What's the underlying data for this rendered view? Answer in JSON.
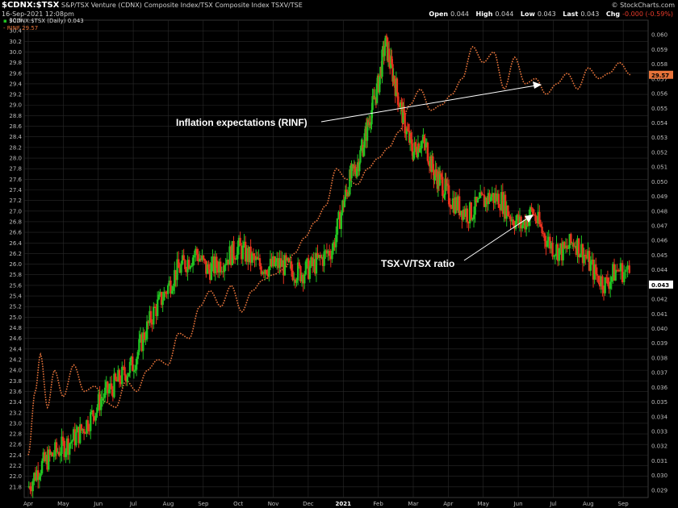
{
  "header": {
    "symbol": "$CDNX:$TSX",
    "description": "S&P/TSX Venture (CDNX) Composite Index/TSX Composite Index  TSXV/TSE",
    "timestamp": "16-Sep-2021 12:08pm",
    "watermark": "© StockCharts.com",
    "quote": {
      "open_label": "Open",
      "open": "0.044",
      "high_label": "High",
      "high": "0.044",
      "low_label": "Low",
      "low": "0.043",
      "last_label": "Last",
      "last": "0.043",
      "chg_label": "Chg",
      "chg": "-0.000 (-0.59%)"
    }
  },
  "legend": {
    "ratio_entry": "$CDNX:$TSX (Daily) 0.043",
    "rinf_entry": "RINF 29.57"
  },
  "annotations": {
    "inflation": "Inflation expectations (RINF)",
    "ratio": "TSX-V/TSX ratio"
  },
  "colors": {
    "background": "#000000",
    "up_candle": "#22c322",
    "down_candle": "#e8321e",
    "rinf_line": "#e8743a",
    "grid": "#2a2a2a",
    "annotation": "#ffffff"
  },
  "chart_data": {
    "type": "line",
    "title": "$CDNX:$TSX",
    "x_ticks": [
      "Apr",
      "May",
      "Jun",
      "Jul",
      "Aug",
      "Sep",
      "Oct",
      "Nov",
      "Dec",
      "2021",
      "Feb",
      "Mar",
      "Apr",
      "May",
      "Jun",
      "Jul",
      "Aug",
      "Sep"
    ],
    "y_left": {
      "label": "RINF",
      "range": [
        21.6,
        30.6
      ],
      "ticks": [
        "21.8",
        "22.0",
        "22.2",
        "22.4",
        "22.6",
        "22.8",
        "23.0",
        "23.2",
        "23.4",
        "23.6",
        "23.8",
        "24.0",
        "24.2",
        "24.4",
        "24.6",
        "24.8",
        "25.0",
        "25.2",
        "25.4",
        "25.6",
        "25.8",
        "26.0",
        "26.2",
        "26.4",
        "26.6",
        "26.8",
        "27.0",
        "27.2",
        "27.4",
        "27.6",
        "27.8",
        "28.0",
        "28.2",
        "28.4",
        "28.6",
        "28.8",
        "29.0",
        "29.2",
        "29.4",
        "29.6",
        "29.8",
        "30.0",
        "30.2",
        "30.4",
        "30.6"
      ]
    },
    "y_right": {
      "label": "$CDNX:$TSX",
      "range": [
        0.0285,
        0.061
      ],
      "ticks": [
        "0.029",
        "0.030",
        "0.031",
        "0.032",
        "0.033",
        "0.034",
        "0.035",
        "0.036",
        "0.037",
        "0.038",
        "0.039",
        "0.040",
        "0.041",
        "0.042",
        "0.043",
        "0.044",
        "0.045",
        "0.046",
        "0.047",
        "0.048",
        "0.049",
        "0.050",
        "0.051",
        "0.052",
        "0.053",
        "0.054",
        "0.055",
        "0.056",
        "0.057",
        "0.058",
        "0.059",
        "0.060"
      ]
    },
    "last_values": {
      "rinf": "29.57",
      "ratio": "0.043"
    },
    "grid": true,
    "series": [
      {
        "name": "$CDNX:$TSX",
        "type": "candlestick",
        "axis": "right",
        "x": [
          0,
          0.3,
          0.6,
          0.9,
          1.2,
          1.5,
          1.8,
          2.1,
          2.4,
          2.7,
          3.0,
          3.3,
          3.6,
          3.9,
          4.2,
          4.5,
          4.8,
          5.1,
          5.4,
          5.7,
          6.0,
          6.3,
          6.6,
          6.9,
          7.2,
          7.5,
          7.8,
          8.1,
          8.4,
          8.7,
          9.0,
          9.2,
          9.4,
          9.6,
          9.8,
          10.0,
          10.2,
          10.4,
          10.6,
          10.8,
          11.0,
          11.2,
          11.4,
          11.6,
          11.8,
          12.0,
          12.3,
          12.6,
          12.9,
          13.2,
          13.5,
          13.8,
          14.1,
          14.4,
          14.7,
          15.0,
          15.3,
          15.6,
          15.9,
          16.2,
          16.5,
          16.8,
          17.2
        ],
        "values": [
          0.0292,
          0.0305,
          0.0312,
          0.0318,
          0.0323,
          0.033,
          0.034,
          0.0353,
          0.036,
          0.0368,
          0.0376,
          0.0395,
          0.0412,
          0.0424,
          0.0438,
          0.0445,
          0.0452,
          0.044,
          0.0443,
          0.0449,
          0.0455,
          0.0449,
          0.0443,
          0.0442,
          0.0444,
          0.044,
          0.0438,
          0.0442,
          0.0448,
          0.0455,
          0.0485,
          0.0502,
          0.0512,
          0.0528,
          0.0548,
          0.0566,
          0.0595,
          0.0575,
          0.0555,
          0.0535,
          0.052,
          0.0528,
          0.0522,
          0.0505,
          0.05,
          0.049,
          0.0483,
          0.0478,
          0.0485,
          0.049,
          0.0488,
          0.0476,
          0.047,
          0.048,
          0.0465,
          0.0455,
          0.0452,
          0.046,
          0.045,
          0.0437,
          0.043,
          0.044,
          0.0438
        ]
      },
      {
        "name": "RINF",
        "type": "dotted-line",
        "axis": "left",
        "x": [
          0,
          0.2,
          0.35,
          0.55,
          0.75,
          1.0,
          1.3,
          1.6,
          1.9,
          2.2,
          2.5,
          2.8,
          3.1,
          3.4,
          3.7,
          4.0,
          4.3,
          4.6,
          4.9,
          5.2,
          5.5,
          5.8,
          6.1,
          6.4,
          6.7,
          7.0,
          7.3,
          7.6,
          7.9,
          8.2,
          8.5,
          8.8,
          9.1,
          9.4,
          9.7,
          10.0,
          10.3,
          10.6,
          10.9,
          11.2,
          11.5,
          11.8,
          12.1,
          12.4,
          12.7,
          13.0,
          13.3,
          13.6,
          13.9,
          14.2,
          14.5,
          14.8,
          15.1,
          15.4,
          15.7,
          16.0,
          16.3,
          16.6,
          16.9,
          17.2
        ],
        "values": [
          22.4,
          23.6,
          24.3,
          23.3,
          24.0,
          23.5,
          24.1,
          23.6,
          23.7,
          23.4,
          23.3,
          23.8,
          23.6,
          24.0,
          24.2,
          24.1,
          24.7,
          24.6,
          25.2,
          25.5,
          25.2,
          25.6,
          25.1,
          25.5,
          25.7,
          25.8,
          25.9,
          26.2,
          26.5,
          26.8,
          27.1,
          27.8,
          27.6,
          27.5,
          27.8,
          28.0,
          28.2,
          28.5,
          29.0,
          29.3,
          28.9,
          29.0,
          29.2,
          29.5,
          30.1,
          29.8,
          30.0,
          29.3,
          29.9,
          29.4,
          29.5,
          29.2,
          29.4,
          29.6,
          29.3,
          29.7,
          29.5,
          29.6,
          29.8,
          29.57
        ]
      }
    ]
  }
}
